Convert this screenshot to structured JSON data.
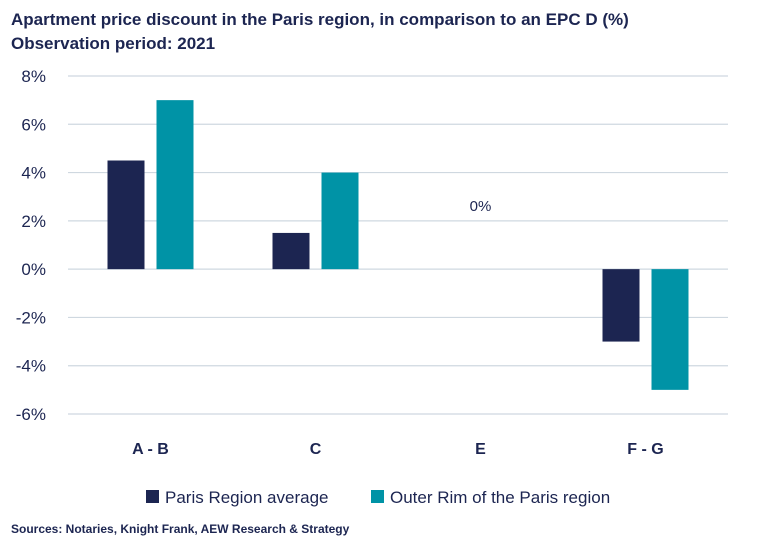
{
  "title_line1": "Apartment price discount in the Paris region, in comparison to an EPC D (%)",
  "title_line2": "Observation period: 2021",
  "source": "Sources: Notaries, Knight Frank, AEW Research & Strategy",
  "colors": {
    "series1": "#1c2551",
    "series2": "#0093a6",
    "grid": "#cfd8e0",
    "text": "#1c2551"
  },
  "chart_data": {
    "type": "bar",
    "categories": [
      "A - B",
      "C",
      "E",
      "F - G"
    ],
    "series": [
      {
        "name": "Paris Region average",
        "values": [
          4.5,
          1.5,
          0,
          -3
        ]
      },
      {
        "name": "Outer Rim of the Paris region",
        "values": [
          7,
          4,
          0,
          -5
        ]
      }
    ],
    "yticks": [
      "8%",
      "6%",
      "4%",
      "2%",
      "0%",
      "-2%",
      "-4%",
      "-6%"
    ],
    "ylim": [
      -6,
      8
    ],
    "annotations": [
      {
        "category": "E",
        "text": "0%"
      }
    ],
    "legend_position": "bottom",
    "grid": true
  }
}
